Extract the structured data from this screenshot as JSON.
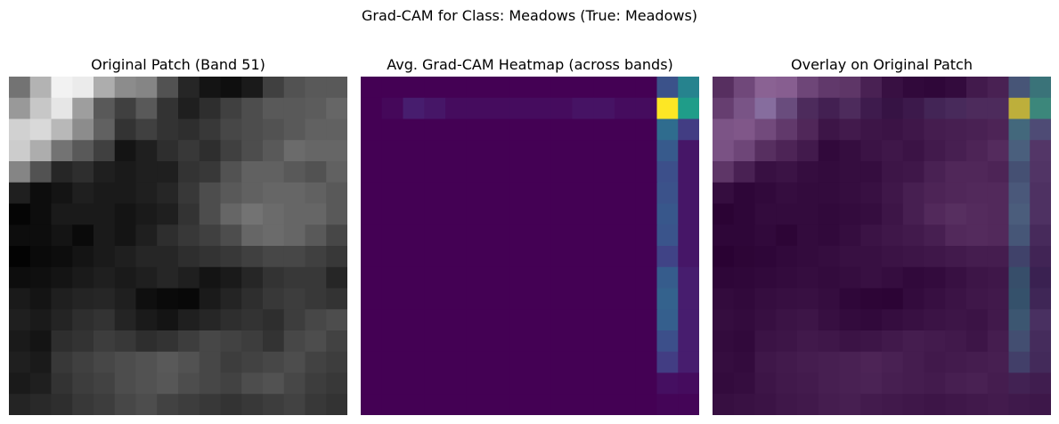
{
  "figure": {
    "suptitle": "Grad-CAM for Class: Meadows (True: Meadows)",
    "grid_size": 16,
    "panels": [
      {
        "id": "original",
        "title": "Original Patch (Band 51)",
        "colormap": "gray"
      },
      {
        "id": "heatmap",
        "title": "Avg. Grad-CAM Heatmap (across bands)",
        "colormap": "viridis"
      },
      {
        "id": "overlay",
        "title": "Overlay on Original Patch",
        "colormap": "viridis-over-gray"
      }
    ]
  },
  "chart_data": {
    "type": "heatmap",
    "rows": 16,
    "cols": 16,
    "band_intensity": [
      [
        0.45,
        0.7,
        0.95,
        0.92,
        0.68,
        0.55,
        0.52,
        0.32,
        0.15,
        0.08,
        0.06,
        0.1,
        0.25,
        0.32,
        0.35,
        0.35
      ],
      [
        0.6,
        0.78,
        0.9,
        0.62,
        0.35,
        0.25,
        0.35,
        0.2,
        0.12,
        0.18,
        0.25,
        0.3,
        0.35,
        0.35,
        0.36,
        0.4
      ],
      [
        0.82,
        0.85,
        0.72,
        0.55,
        0.38,
        0.2,
        0.25,
        0.2,
        0.18,
        0.22,
        0.28,
        0.3,
        0.32,
        0.35,
        0.38,
        0.38
      ],
      [
        0.8,
        0.68,
        0.45,
        0.35,
        0.25,
        0.08,
        0.12,
        0.18,
        0.22,
        0.18,
        0.25,
        0.3,
        0.35,
        0.42,
        0.4,
        0.4
      ],
      [
        0.52,
        0.32,
        0.15,
        0.18,
        0.12,
        0.1,
        0.12,
        0.12,
        0.2,
        0.22,
        0.32,
        0.38,
        0.38,
        0.35,
        0.32,
        0.38
      ],
      [
        0.12,
        0.05,
        0.08,
        0.12,
        0.1,
        0.1,
        0.12,
        0.15,
        0.22,
        0.3,
        0.35,
        0.38,
        0.4,
        0.4,
        0.38,
        0.35
      ],
      [
        0.02,
        0.05,
        0.1,
        0.1,
        0.1,
        0.08,
        0.1,
        0.12,
        0.2,
        0.3,
        0.4,
        0.45,
        0.42,
        0.4,
        0.4,
        0.35
      ],
      [
        0.05,
        0.05,
        0.08,
        0.04,
        0.1,
        0.08,
        0.12,
        0.18,
        0.22,
        0.25,
        0.3,
        0.4,
        0.42,
        0.4,
        0.35,
        0.28
      ],
      [
        0.01,
        0.04,
        0.05,
        0.08,
        0.1,
        0.12,
        0.15,
        0.15,
        0.18,
        0.2,
        0.22,
        0.25,
        0.28,
        0.28,
        0.25,
        0.22
      ],
      [
        0.05,
        0.06,
        0.08,
        0.1,
        0.12,
        0.1,
        0.12,
        0.15,
        0.12,
        0.08,
        0.1,
        0.15,
        0.2,
        0.22,
        0.22,
        0.15
      ],
      [
        0.1,
        0.08,
        0.12,
        0.14,
        0.15,
        0.12,
        0.06,
        0.04,
        0.03,
        0.1,
        0.14,
        0.18,
        0.22,
        0.24,
        0.22,
        0.2
      ],
      [
        0.12,
        0.1,
        0.14,
        0.18,
        0.2,
        0.14,
        0.1,
        0.08,
        0.12,
        0.15,
        0.18,
        0.2,
        0.18,
        0.24,
        0.28,
        0.3
      ],
      [
        0.1,
        0.08,
        0.18,
        0.2,
        0.24,
        0.22,
        0.18,
        0.2,
        0.24,
        0.28,
        0.26,
        0.24,
        0.2,
        0.28,
        0.3,
        0.26
      ],
      [
        0.12,
        0.1,
        0.22,
        0.25,
        0.28,
        0.3,
        0.32,
        0.35,
        0.32,
        0.28,
        0.24,
        0.26,
        0.28,
        0.3,
        0.26,
        0.24
      ],
      [
        0.1,
        0.12,
        0.2,
        0.24,
        0.26,
        0.3,
        0.32,
        0.34,
        0.3,
        0.28,
        0.26,
        0.3,
        0.32,
        0.28,
        0.24,
        0.22
      ],
      [
        0.14,
        0.16,
        0.18,
        0.22,
        0.24,
        0.28,
        0.3,
        0.26,
        0.24,
        0.22,
        0.2,
        0.22,
        0.24,
        0.26,
        0.22,
        0.2
      ]
    ],
    "gradcam": [
      [
        0.0,
        0.0,
        0.0,
        0.0,
        0.0,
        0.0,
        0.0,
        0.0,
        0.0,
        0.0,
        0.0,
        0.0,
        0.0,
        0.0,
        0.25,
        0.45
      ],
      [
        0.0,
        0.02,
        0.08,
        0.06,
        0.03,
        0.03,
        0.03,
        0.03,
        0.03,
        0.03,
        0.05,
        0.05,
        0.03,
        0.03,
        1.0,
        0.55
      ],
      [
        0.0,
        0.0,
        0.0,
        0.0,
        0.0,
        0.0,
        0.0,
        0.0,
        0.0,
        0.0,
        0.0,
        0.0,
        0.0,
        0.0,
        0.35,
        0.18
      ],
      [
        0.0,
        0.0,
        0.0,
        0.0,
        0.0,
        0.0,
        0.0,
        0.0,
        0.0,
        0.0,
        0.0,
        0.0,
        0.0,
        0.0,
        0.28,
        0.06
      ],
      [
        0.0,
        0.0,
        0.0,
        0.0,
        0.0,
        0.0,
        0.0,
        0.0,
        0.0,
        0.0,
        0.0,
        0.0,
        0.0,
        0.0,
        0.24,
        0.06
      ],
      [
        0.0,
        0.0,
        0.0,
        0.0,
        0.0,
        0.0,
        0.0,
        0.0,
        0.0,
        0.0,
        0.0,
        0.0,
        0.0,
        0.0,
        0.25,
        0.06
      ],
      [
        0.0,
        0.0,
        0.0,
        0.0,
        0.0,
        0.0,
        0.0,
        0.0,
        0.0,
        0.0,
        0.0,
        0.0,
        0.0,
        0.0,
        0.27,
        0.06
      ],
      [
        0.0,
        0.0,
        0.0,
        0.0,
        0.0,
        0.0,
        0.0,
        0.0,
        0.0,
        0.0,
        0.0,
        0.0,
        0.0,
        0.0,
        0.26,
        0.06
      ],
      [
        0.0,
        0.0,
        0.0,
        0.0,
        0.0,
        0.0,
        0.0,
        0.0,
        0.0,
        0.0,
        0.0,
        0.0,
        0.0,
        0.0,
        0.2,
        0.06
      ],
      [
        0.0,
        0.0,
        0.0,
        0.0,
        0.0,
        0.0,
        0.0,
        0.0,
        0.0,
        0.0,
        0.0,
        0.0,
        0.0,
        0.0,
        0.29,
        0.08
      ],
      [
        0.0,
        0.0,
        0.0,
        0.0,
        0.0,
        0.0,
        0.0,
        0.0,
        0.0,
        0.0,
        0.0,
        0.0,
        0.0,
        0.0,
        0.31,
        0.08
      ],
      [
        0.0,
        0.0,
        0.0,
        0.0,
        0.0,
        0.0,
        0.0,
        0.0,
        0.0,
        0.0,
        0.0,
        0.0,
        0.0,
        0.0,
        0.3,
        0.08
      ],
      [
        0.0,
        0.0,
        0.0,
        0.0,
        0.0,
        0.0,
        0.0,
        0.0,
        0.0,
        0.0,
        0.0,
        0.0,
        0.0,
        0.0,
        0.24,
        0.08
      ],
      [
        0.0,
        0.0,
        0.0,
        0.0,
        0.0,
        0.0,
        0.0,
        0.0,
        0.0,
        0.0,
        0.0,
        0.0,
        0.0,
        0.0,
        0.18,
        0.08
      ],
      [
        0.0,
        0.0,
        0.0,
        0.0,
        0.0,
        0.0,
        0.0,
        0.0,
        0.0,
        0.0,
        0.0,
        0.0,
        0.0,
        0.0,
        0.04,
        0.03
      ],
      [
        0.0,
        0.0,
        0.0,
        0.0,
        0.0,
        0.0,
        0.0,
        0.0,
        0.0,
        0.0,
        0.0,
        0.0,
        0.0,
        0.0,
        0.01,
        0.01
      ]
    ]
  }
}
